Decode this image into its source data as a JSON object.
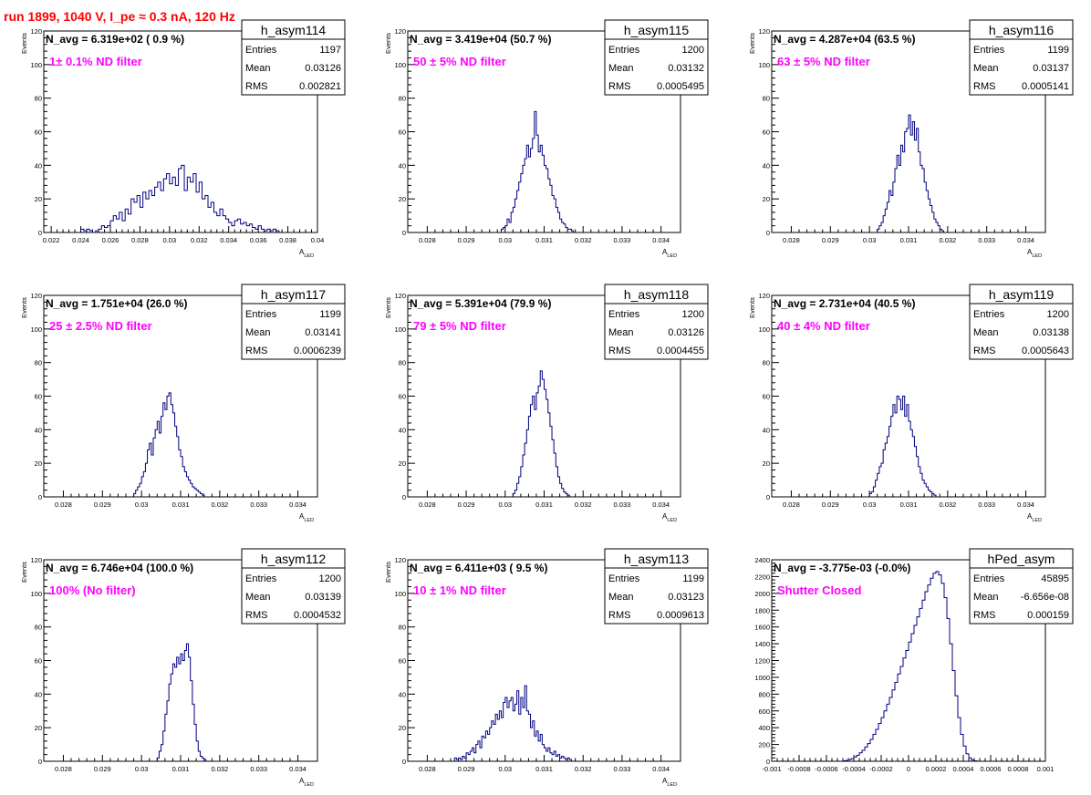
{
  "page": {
    "title": "run 1899,  1040 V, I_pe ≈ 0.3 nA, 120 Hz"
  },
  "colors": {
    "hist": "#000080",
    "note": "#ff00ff",
    "title": "#ff0000",
    "frame": "#000000"
  },
  "chart_data": [
    {
      "type": "bar",
      "name": "h_asym114",
      "stats": {
        "entries_label": "Entries",
        "entries": "1197",
        "mean_label": "Mean",
        "mean": "0.03126",
        "rms_label": "RMS",
        "rms": "0.002821"
      },
      "navg_text": "N_avg = 6.319e+02 ( 0.9 %)",
      "note": "1± 0.1% ND filter",
      "ylabel": "Events",
      "xlabel": "A",
      "xlabel_sub": "LED",
      "xlim": [
        0.0215,
        0.04
      ],
      "ylim": [
        0,
        120
      ],
      "xticks": [
        0.022,
        0.024,
        0.026,
        0.028,
        0.03,
        0.032,
        0.034,
        0.036,
        0.038,
        0.04
      ],
      "xtick_labels": [
        "0.022",
        "0.024",
        "0.026",
        "0.028",
        "0.03",
        "0.032",
        "0.034",
        "0.036",
        "0.038",
        "0.04"
      ],
      "yticks": [
        0,
        20,
        40,
        60,
        80,
        100,
        120
      ],
      "ytick_labels": [
        "0",
        "20",
        "40",
        "60",
        "80",
        "100",
        "120"
      ],
      "hist": {
        "start": 0.024,
        "width": 0.0002,
        "values": [
          2,
          1,
          2,
          1,
          0,
          1,
          2,
          4,
          3,
          4,
          7,
          10,
          8,
          12,
          7,
          14,
          11,
          20,
          18,
          22,
          15,
          24,
          20,
          25,
          22,
          27,
          30,
          25,
          32,
          35,
          29,
          33,
          28,
          38,
          40,
          25,
          33,
          30,
          35,
          24,
          30,
          20,
          22,
          15,
          18,
          12,
          10,
          14,
          10,
          8,
          6,
          4,
          7,
          8,
          5,
          6,
          4,
          5,
          3,
          2,
          4,
          2,
          1,
          2,
          1,
          2,
          1
        ]
      }
    },
    {
      "type": "bar",
      "name": "h_asym115",
      "stats": {
        "entries_label": "Entries",
        "entries": "1200",
        "mean_label": "Mean",
        "mean": "0.03132",
        "rms_label": "RMS",
        "rms": "0.0005495"
      },
      "navg_text": "N_avg = 3.419e+04 (50.7 %)",
      "note": "50 ± 5% ND filter",
      "ylabel": "Events",
      "xlabel": "A",
      "xlabel_sub": "LED",
      "xlim": [
        0.0275,
        0.0345
      ],
      "ylim": [
        0,
        120
      ],
      "xticks": [
        0.028,
        0.029,
        0.03,
        0.031,
        0.032,
        0.033,
        0.034
      ],
      "xtick_labels": [
        "0.028",
        "0.029",
        "0.03",
        "0.031",
        "0.032",
        "0.033",
        "0.034"
      ],
      "yticks": [
        0,
        20,
        40,
        60,
        80,
        100,
        120
      ],
      "yticks_labels": [
        "0",
        "20",
        "40",
        "60",
        "80",
        "100",
        "120"
      ],
      "ytick_labels": [
        "0",
        "20",
        "40",
        "60",
        "80",
        "100",
        "120"
      ],
      "hist": {
        "start": 0.0299,
        "width": 5e-05,
        "values": [
          2,
          3,
          4,
          8,
          6,
          12,
          15,
          20,
          25,
          30,
          35,
          40,
          44,
          52,
          45,
          50,
          56,
          72,
          58,
          48,
          52,
          46,
          40,
          38,
          32,
          28,
          22,
          20,
          15,
          12,
          8,
          6,
          5,
          3,
          2,
          2,
          1
        ]
      }
    },
    {
      "type": "bar",
      "name": "h_asym116",
      "stats": {
        "entries_label": "Entries",
        "entries": "1199",
        "mean_label": "Mean",
        "mean": "0.03137",
        "rms_label": "RMS",
        "rms": "0.0005141"
      },
      "navg_text": "N_avg = 4.287e+04 (63.5 %)",
      "note": "63 ± 5% ND filter",
      "ylabel": "Events",
      "xlabel": "A",
      "xlabel_sub": "LED",
      "xlim": [
        0.0275,
        0.0345
      ],
      "ylim": [
        0,
        120
      ],
      "xticks": [
        0.028,
        0.029,
        0.03,
        0.031,
        0.032,
        0.033,
        0.034
      ],
      "xtick_labels": [
        "0.028",
        "0.029",
        "0.03",
        "0.031",
        "0.032",
        "0.033",
        "0.034"
      ],
      "yticks": [
        0,
        20,
        40,
        60,
        80,
        100,
        120
      ],
      "ytick_labels": [
        "0",
        "20",
        "40",
        "60",
        "80",
        "100",
        "120"
      ],
      "hist": {
        "start": 0.0302,
        "width": 5e-05,
        "values": [
          2,
          4,
          6,
          10,
          14,
          18,
          25,
          22,
          30,
          38,
          46,
          40,
          52,
          48,
          60,
          62,
          70,
          58,
          66,
          55,
          62,
          48,
          40,
          38,
          30,
          25,
          20,
          16,
          12,
          8,
          6,
          4,
          2,
          1
        ]
      }
    },
    {
      "type": "bar",
      "name": "h_asym117",
      "stats": {
        "entries_label": "Entries",
        "entries": "1199",
        "mean_label": "Mean",
        "mean": "0.03141",
        "rms_label": "RMS",
        "rms": "0.0006239"
      },
      "navg_text": "N_avg = 1.751e+04 (26.0 %)",
      "note": "25 ± 2.5% ND filter",
      "ylabel": "Events",
      "xlabel": "A",
      "xlabel_sub": "LED",
      "xlim": [
        0.0275,
        0.0345
      ],
      "ylim": [
        0,
        120
      ],
      "xticks": [
        0.028,
        0.029,
        0.03,
        0.031,
        0.032,
        0.033,
        0.034
      ],
      "xtick_labels": [
        "0.028",
        "0.029",
        "0.03",
        "0.031",
        "0.032",
        "0.033",
        "0.034"
      ],
      "yticks": [
        0,
        20,
        40,
        60,
        80,
        100,
        120
      ],
      "ytick_labels": [
        "0",
        "20",
        "40",
        "60",
        "80",
        "100",
        "120"
      ],
      "hist": {
        "start": 0.0298,
        "width": 5e-05,
        "values": [
          2,
          4,
          6,
          8,
          12,
          15,
          20,
          28,
          32,
          25,
          35,
          40,
          45,
          38,
          48,
          56,
          52,
          60,
          62,
          55,
          50,
          42,
          36,
          28,
          24,
          18,
          15,
          12,
          10,
          8,
          6,
          5,
          4,
          3,
          2,
          1
        ]
      }
    },
    {
      "type": "bar",
      "name": "h_asym118",
      "stats": {
        "entries_label": "Entries",
        "entries": "1200",
        "mean_label": "Mean",
        "mean": "0.03126",
        "rms_label": "RMS",
        "rms": "0.0004455"
      },
      "navg_text": "N_avg = 5.391e+04 (79.9 %)",
      "note": "79 ± 5% ND filter",
      "ylabel": "Events",
      "xlabel": "A",
      "xlabel_sub": "LED",
      "xlim": [
        0.0275,
        0.0345
      ],
      "ylim": [
        0,
        120
      ],
      "xticks": [
        0.028,
        0.029,
        0.03,
        0.031,
        0.032,
        0.033,
        0.034
      ],
      "xtick_labels": [
        "0.028",
        "0.029",
        "0.03",
        "0.031",
        "0.032",
        "0.033",
        "0.034"
      ],
      "yticks": [
        0,
        20,
        40,
        60,
        80,
        100,
        120
      ],
      "ytick_labels": [
        "0",
        "20",
        "40",
        "60",
        "80",
        "100",
        "120"
      ],
      "hist": {
        "start": 0.0302,
        "width": 5e-05,
        "values": [
          2,
          4,
          8,
          12,
          18,
          25,
          32,
          40,
          48,
          55,
          60,
          52,
          62,
          66,
          75,
          70,
          64,
          58,
          50,
          42,
          34,
          26,
          18,
          12,
          8,
          5,
          3,
          2,
          1
        ]
      }
    },
    {
      "type": "bar",
      "name": "h_asym119",
      "stats": {
        "entries_label": "Entries",
        "entries": "1200",
        "mean_label": "Mean",
        "mean": "0.03138",
        "rms_label": "RMS",
        "rms": "0.0005643"
      },
      "navg_text": "N_avg = 2.731e+04 (40.5 %)",
      "note": "40 ± 4% ND filter",
      "ylabel": "Events",
      "xlabel": "A",
      "xlabel_sub": "LED",
      "xlim": [
        0.0275,
        0.0345
      ],
      "ylim": [
        0,
        120
      ],
      "xticks": [
        0.028,
        0.029,
        0.03,
        0.031,
        0.032,
        0.033,
        0.034
      ],
      "xtick_labels": [
        "0.028",
        "0.029",
        "0.03",
        "0.031",
        "0.032",
        "0.033",
        "0.034"
      ],
      "yticks": [
        0,
        20,
        40,
        60,
        80,
        100,
        120
      ],
      "ytick_labels": [
        "0",
        "20",
        "40",
        "60",
        "80",
        "100",
        "120"
      ],
      "hist": {
        "start": 0.03,
        "width": 5e-05,
        "values": [
          2,
          3,
          6,
          10,
          14,
          18,
          20,
          28,
          32,
          36,
          42,
          48,
          55,
          50,
          60,
          58,
          52,
          60,
          48,
          55,
          45,
          40,
          36,
          30,
          24,
          18,
          14,
          10,
          8,
          6,
          4,
          3,
          2,
          1
        ]
      }
    },
    {
      "type": "bar",
      "name": "h_asym112",
      "stats": {
        "entries_label": "Entries",
        "entries": "1200",
        "mean_label": "Mean",
        "mean": "0.03139",
        "rms_label": "RMS",
        "rms": "0.0004532"
      },
      "navg_text": "N_avg = 6.746e+04 (100.0 %)",
      "note": "100% (No filter)",
      "ylabel": "Events",
      "xlabel": "A",
      "xlabel_sub": "LED",
      "xlim": [
        0.0275,
        0.0345
      ],
      "ylim": [
        0,
        120
      ],
      "xticks": [
        0.028,
        0.029,
        0.03,
        0.031,
        0.032,
        0.033,
        0.034
      ],
      "xtick_labels": [
        "0.028",
        "0.029",
        "0.03",
        "0.031",
        "0.032",
        "0.033",
        "0.034"
      ],
      "yticks": [
        0,
        20,
        40,
        60,
        80,
        100,
        120
      ],
      "ytick_labels": [
        "0",
        "20",
        "40",
        "60",
        "80",
        "100",
        "120"
      ],
      "hist": {
        "start": 0.0304,
        "width": 5e-05,
        "values": [
          2,
          6,
          10,
          18,
          28,
          36,
          46,
          52,
          58,
          56,
          62,
          58,
          64,
          60,
          66,
          70,
          62,
          48,
          34,
          22,
          12,
          6,
          3,
          2,
          1
        ]
      }
    },
    {
      "type": "bar",
      "name": "h_asym113",
      "stats": {
        "entries_label": "Entries",
        "entries": "1199",
        "mean_label": "Mean",
        "mean": "0.03123",
        "rms_label": "RMS",
        "rms": "0.0009613"
      },
      "navg_text": "N_avg = 6.411e+03 ( 9.5 %)",
      "note": "10 ± 1% ND filter",
      "ylabel": "Events",
      "xlabel": "A",
      "xlabel_sub": "LED",
      "xlim": [
        0.0275,
        0.0345
      ],
      "ylim": [
        0,
        120
      ],
      "xticks": [
        0.028,
        0.029,
        0.03,
        0.031,
        0.032,
        0.033,
        0.034
      ],
      "xtick_labels": [
        "0.028",
        "0.029",
        "0.03",
        "0.031",
        "0.032",
        "0.033",
        "0.034"
      ],
      "yticks": [
        0,
        20,
        40,
        60,
        80,
        100,
        120
      ],
      "ytick_labels": [
        "0",
        "20",
        "40",
        "60",
        "80",
        "100",
        "120"
      ],
      "hist": {
        "start": 0.0287,
        "width": 5e-05,
        "values": [
          2,
          1,
          2,
          1,
          3,
          2,
          5,
          4,
          6,
          8,
          5,
          10,
          12,
          8,
          15,
          14,
          18,
          16,
          20,
          24,
          22,
          28,
          25,
          30,
          26,
          35,
          38,
          32,
          36,
          38,
          30,
          34,
          42,
          28,
          38,
          32,
          45,
          30,
          28,
          20,
          24,
          15,
          18,
          12,
          16,
          10,
          8,
          6,
          8,
          5,
          4,
          6,
          3,
          4,
          2,
          3,
          2,
          1,
          2,
          1
        ]
      }
    },
    {
      "type": "bar",
      "name": "hPed_asym",
      "stats": {
        "entries_label": "Entries",
        "entries": "45895",
        "mean_label": "Mean",
        "mean": "-6.656e-08",
        "rms_label": "RMS",
        "rms": "0.000159"
      },
      "navg_text": "N_avg = -3.775e-03 (-0.0%)",
      "note": "Shutter Closed",
      "ylabel": "",
      "xlabel": "",
      "xlabel_sub": "",
      "xlim": [
        -0.001,
        0.001
      ],
      "ylim": [
        0,
        2400
      ],
      "xticks": [
        -0.001,
        -0.0008,
        -0.0006,
        -0.0004,
        -0.0002,
        0,
        0.0002,
        0.0004,
        0.0006,
        0.0008,
        0.001
      ],
      "xtick_labels": [
        "-0.001",
        "-0.0008",
        "-0.0006",
        "-0.0004",
        "-0.0002",
        "0",
        "0.0002",
        "0.0004",
        "0.0006",
        "0.0008",
        "0.001"
      ],
      "yticks": [
        0,
        200,
        400,
        600,
        800,
        1000,
        1200,
        1400,
        1600,
        1800,
        2000,
        2200,
        2400
      ],
      "ytick_labels": [
        "0",
        "200",
        "400",
        "600",
        "800",
        "1000",
        "1200",
        "1400",
        "1600",
        "1800",
        "2000",
        "2200",
        "2400"
      ],
      "hist": {
        "start": -0.00048,
        "width": 2e-05,
        "values": [
          5,
          10,
          20,
          30,
          50,
          70,
          100,
          130,
          170,
          210,
          260,
          320,
          380,
          450,
          520,
          600,
          680,
          760,
          850,
          940,
          1040,
          1130,
          1230,
          1320,
          1420,
          1520,
          1620,
          1720,
          1820,
          1920,
          2020,
          2100,
          2180,
          2240,
          2260,
          2220,
          2120,
          1950,
          1700,
          1400,
          1080,
          780,
          520,
          320,
          180,
          90,
          40,
          15,
          5
        ]
      }
    }
  ]
}
